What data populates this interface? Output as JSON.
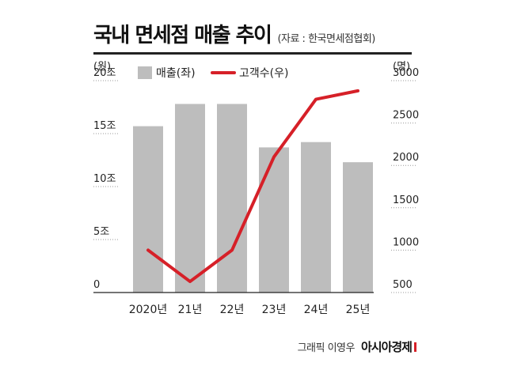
{
  "header": {
    "title": "국내 면세점 매출 추이",
    "source": "(자료 : 한국면세점협회)"
  },
  "footer": {
    "credit": "그래픽 이영우",
    "brand": "아시아경제"
  },
  "colors": {
    "bar": "#bdbdbd",
    "line": "#d62028",
    "text": "#222222",
    "grid": "#999999"
  },
  "chart_data": {
    "type": "bar",
    "categories": [
      "2020년",
      "21년",
      "22년",
      "23년",
      "24년",
      "25년"
    ],
    "series": [
      {
        "name": "매출(좌)",
        "type": "bar",
        "axis": "left",
        "values": [
          15.7,
          17.8,
          17.8,
          13.7,
          14.2,
          12.3
        ]
      },
      {
        "name": "고객수(우)",
        "type": "line",
        "axis": "right",
        "values": [
          1000,
          630,
          1000,
          2100,
          2780,
          2880
        ]
      }
    ],
    "y_left": {
      "unit": "(원)",
      "ticks": [
        "0",
        "5조",
        "10조",
        "15조",
        "20조"
      ],
      "ylim": [
        0,
        20
      ]
    },
    "y_right": {
      "unit": "(명)",
      "ticks": [
        "500",
        "1000",
        "1500",
        "2000",
        "2500",
        "3000"
      ],
      "ylim": [
        500,
        3000
      ]
    },
    "legend_position": "top-left",
    "grid": "dotted"
  }
}
